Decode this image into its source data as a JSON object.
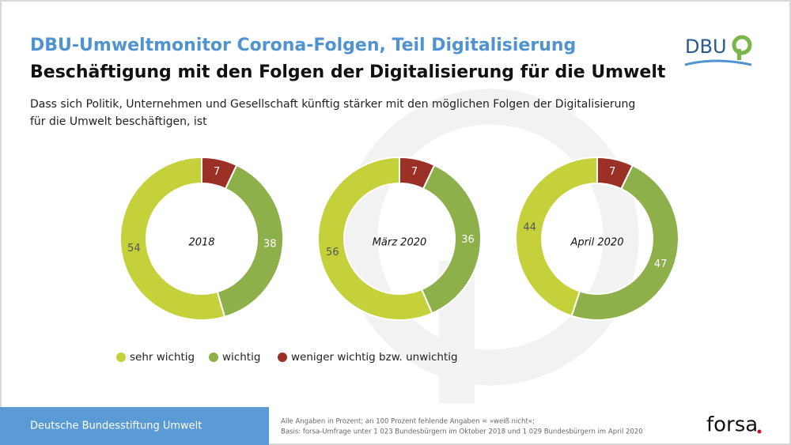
{
  "header": {
    "title": "DBU-Umweltmonitor Corona-Folgen, Teil Digitalisierung",
    "subtitle": "Beschäftigung mit den Folgen der Digitalisierung für die Umwelt",
    "question": [
      "Dass sich Politik, Unternehmen und Gesellschaft künftig stärker mit den möglichen Folgen der Digitalisierung",
      "für die Umwelt beschäftigen, ist"
    ]
  },
  "logo": "DBU",
  "chart_data": {
    "type": "donut",
    "categories": [
      "sehr wichtig",
      "wichtig",
      "weniger wichtig bzw. unwichtig"
    ],
    "colors": [
      "#c5d13a",
      "#8db04a",
      "#9b3026"
    ],
    "series": [
      {
        "name": "2018",
        "values": [
          54,
          38,
          7
        ]
      },
      {
        "name": "März 2020",
        "values": [
          56,
          36,
          7
        ]
      },
      {
        "name": "April 2020",
        "values": [
          44,
          47,
          7
        ]
      }
    ]
  },
  "footer": {
    "organization": "Deutsche Bundesstiftung Umwelt",
    "notes": [
      "Alle Angaben in Prozent; an 100 Prozent fehlende Angaben = »weiß nicht«;",
      "Basis: forsa-Umfrage unter 1 023 Bundesbürgern im Oktober 2018 und 1 029 Bundesbürgern im April 2020"
    ],
    "source_logo": "forsa"
  }
}
